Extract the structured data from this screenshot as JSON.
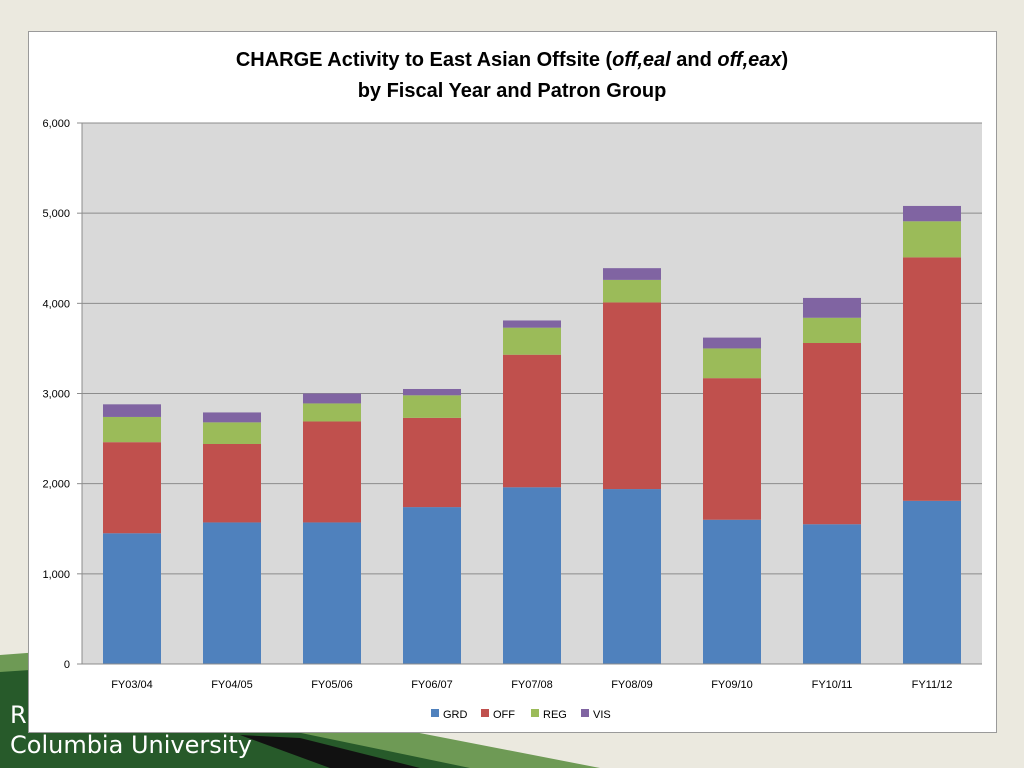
{
  "slide": {
    "org_line1": "R",
    "org_line2": "Columbia University"
  },
  "chart_data": {
    "type": "bar",
    "stacked": true,
    "title_parts": [
      [
        {
          "text": "CHARGE Activity to East Asian Offsite (",
          "italic": false
        },
        {
          "text": "off,eal",
          "italic": true
        },
        {
          "text": " and ",
          "italic": false
        },
        {
          "text": "off,eax",
          "italic": true
        },
        {
          "text": ")",
          "italic": false
        }
      ],
      [
        {
          "text": "by Fiscal Year and Patron Group",
          "italic": false
        }
      ]
    ],
    "categories": [
      "FY03/04",
      "FY04/05",
      "FY05/06",
      "FY06/07",
      "FY07/08",
      "FY08/09",
      "FY09/10",
      "FY10/11",
      "FY11/12"
    ],
    "series": [
      {
        "name": "GRD",
        "color": "#4f81bd",
        "values": [
          1450,
          1570,
          1570,
          1740,
          1960,
          1940,
          1600,
          1550,
          1810
        ]
      },
      {
        "name": "OFF",
        "color": "#c0504d",
        "values": [
          1010,
          870,
          1120,
          990,
          1470,
          2070,
          1570,
          2010,
          2700
        ]
      },
      {
        "name": "REG",
        "color": "#9bbb59",
        "values": [
          280,
          240,
          200,
          250,
          300,
          250,
          330,
          280,
          400
        ]
      },
      {
        "name": "VIS",
        "color": "#8064a2",
        "values": [
          140,
          110,
          110,
          70,
          80,
          130,
          120,
          220,
          170
        ]
      }
    ],
    "ylim": [
      0,
      6000
    ],
    "yticks": [
      "0",
      "1,000",
      "2,000",
      "3,000",
      "4,000",
      "5,000",
      "6,000"
    ],
    "ytick_values": [
      0,
      1000,
      2000,
      3000,
      4000,
      5000,
      6000
    ],
    "grid": true,
    "legend_position": "bottom",
    "plot_background": "#d9d9d9"
  }
}
